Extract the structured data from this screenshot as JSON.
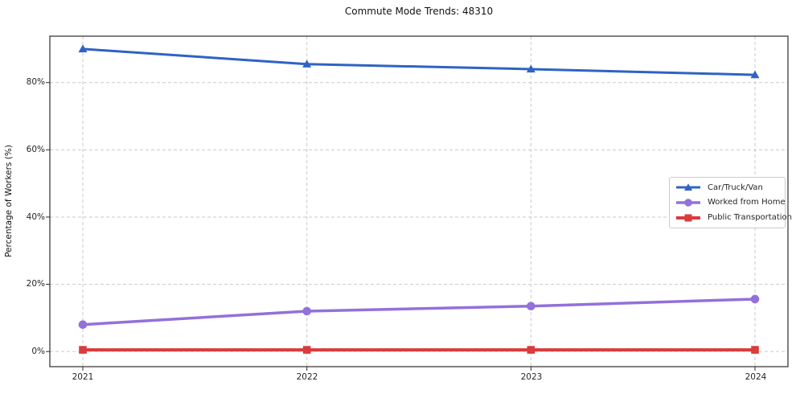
{
  "chart_data": {
    "type": "line",
    "title": "Commute Mode Trends: 48310",
    "xlabel": "",
    "ylabel": "Percentage of Workers (%)",
    "x_categories": [
      "2021",
      "2022",
      "2023",
      "2024"
    ],
    "ytick_labels": [
      "0%",
      "20%",
      "40%",
      "60%",
      "80%"
    ],
    "ytick_values": [
      0,
      20,
      40,
      60,
      80
    ],
    "ylim": [
      -4.5,
      93.8
    ],
    "grid": true,
    "grid_style": "dashed",
    "legend_position": "center-right",
    "series": [
      {
        "name": "Car/Truck/Van",
        "color": "#2f63c4",
        "marker": "triangle-up",
        "line_width": 3,
        "values": [
          90.0,
          85.5,
          84.0,
          82.3
        ]
      },
      {
        "name": "Worked from Home",
        "color": "#9370db",
        "marker": "circle",
        "line_width": 3.5,
        "values": [
          8.0,
          12.0,
          13.5,
          15.6
        ]
      },
      {
        "name": "Public Transportation",
        "color": "#d93b3e",
        "marker": "square",
        "line_width": 4,
        "values": [
          0.5,
          0.5,
          0.5,
          0.5
        ]
      }
    ]
  }
}
